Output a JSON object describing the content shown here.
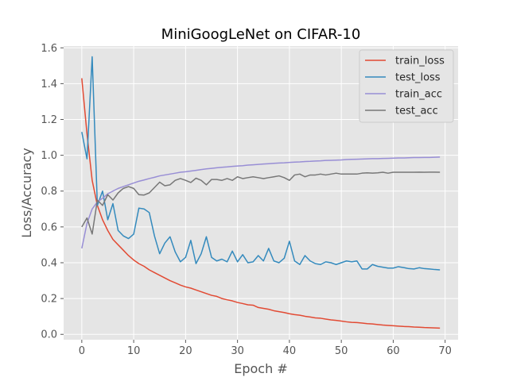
{
  "chart_data": {
    "type": "line",
    "title": "MiniGoogLeNet on CIFAR-10",
    "xlabel": "Epoch #",
    "ylabel": "Loss/Accuracy",
    "xlim": [
      -3.5,
      72.5
    ],
    "ylim": [
      -0.03,
      1.61
    ],
    "xticks": [
      "0",
      "10",
      "20",
      "30",
      "40",
      "50",
      "60",
      "70"
    ],
    "yticks": [
      "0.0",
      "0.2",
      "0.4",
      "0.6",
      "0.8",
      "1.0",
      "1.2",
      "1.4",
      "1.6"
    ],
    "grid": true,
    "legend_position": "top-right",
    "x": [
      0,
      1,
      2,
      3,
      4,
      5,
      6,
      7,
      8,
      9,
      10,
      11,
      12,
      13,
      14,
      15,
      16,
      17,
      18,
      19,
      20,
      21,
      22,
      23,
      24,
      25,
      26,
      27,
      28,
      29,
      30,
      31,
      32,
      33,
      34,
      35,
      36,
      37,
      38,
      39,
      40,
      41,
      42,
      43,
      44,
      45,
      46,
      47,
      48,
      49,
      50,
      51,
      52,
      53,
      54,
      55,
      56,
      57,
      58,
      59,
      60,
      61,
      62,
      63,
      64,
      65,
      66,
      67,
      68,
      69
    ],
    "series": [
      {
        "name": "train_loss",
        "color": "#E24A33",
        "values": [
          1.43,
          1.12,
          0.86,
          0.72,
          0.64,
          0.58,
          0.53,
          0.5,
          0.47,
          0.44,
          0.415,
          0.395,
          0.38,
          0.36,
          0.345,
          0.33,
          0.315,
          0.3,
          0.288,
          0.275,
          0.265,
          0.258,
          0.248,
          0.238,
          0.228,
          0.218,
          0.212,
          0.2,
          0.193,
          0.187,
          0.178,
          0.172,
          0.165,
          0.163,
          0.15,
          0.145,
          0.14,
          0.132,
          0.127,
          0.122,
          0.115,
          0.11,
          0.107,
          0.101,
          0.097,
          0.092,
          0.09,
          0.085,
          0.081,
          0.078,
          0.074,
          0.07,
          0.067,
          0.066,
          0.063,
          0.06,
          0.058,
          0.055,
          0.052,
          0.05,
          0.048,
          0.046,
          0.044,
          0.043,
          0.041,
          0.04,
          0.038,
          0.037,
          0.036,
          0.035
        ]
      },
      {
        "name": "test_loss",
        "color": "#348ABD",
        "values": [
          1.13,
          0.98,
          1.55,
          0.72,
          0.8,
          0.64,
          0.73,
          0.58,
          0.55,
          0.535,
          0.56,
          0.705,
          0.7,
          0.68,
          0.55,
          0.45,
          0.51,
          0.545,
          0.46,
          0.405,
          0.43,
          0.525,
          0.395,
          0.45,
          0.545,
          0.43,
          0.41,
          0.42,
          0.405,
          0.465,
          0.405,
          0.445,
          0.4,
          0.405,
          0.44,
          0.41,
          0.48,
          0.41,
          0.4,
          0.425,
          0.52,
          0.41,
          0.39,
          0.44,
          0.41,
          0.395,
          0.39,
          0.405,
          0.4,
          0.39,
          0.4,
          0.41,
          0.405,
          0.41,
          0.365,
          0.365,
          0.39,
          0.38,
          0.375,
          0.37,
          0.37,
          0.378,
          0.373,
          0.367,
          0.365,
          0.372,
          0.367,
          0.365,
          0.362,
          0.36
        ]
      },
      {
        "name": "train_acc",
        "color": "#988ED5",
        "values": [
          0.48,
          0.62,
          0.7,
          0.74,
          0.76,
          0.785,
          0.8,
          0.815,
          0.825,
          0.835,
          0.845,
          0.855,
          0.862,
          0.87,
          0.877,
          0.885,
          0.89,
          0.895,
          0.9,
          0.905,
          0.908,
          0.912,
          0.916,
          0.92,
          0.924,
          0.927,
          0.93,
          0.933,
          0.935,
          0.938,
          0.94,
          0.942,
          0.945,
          0.947,
          0.949,
          0.951,
          0.953,
          0.955,
          0.957,
          0.958,
          0.96,
          0.962,
          0.963,
          0.965,
          0.966,
          0.968,
          0.969,
          0.971,
          0.972,
          0.973,
          0.974,
          0.976,
          0.977,
          0.978,
          0.979,
          0.98,
          0.981,
          0.981,
          0.982,
          0.983,
          0.984,
          0.985,
          0.985,
          0.986,
          0.987,
          0.987,
          0.988,
          0.988,
          0.989,
          0.99
        ]
      },
      {
        "name": "test_acc",
        "color": "#777777",
        "values": [
          0.6,
          0.65,
          0.56,
          0.75,
          0.72,
          0.78,
          0.75,
          0.79,
          0.815,
          0.825,
          0.815,
          0.78,
          0.778,
          0.79,
          0.82,
          0.85,
          0.83,
          0.835,
          0.86,
          0.87,
          0.86,
          0.848,
          0.872,
          0.86,
          0.835,
          0.865,
          0.865,
          0.86,
          0.87,
          0.86,
          0.88,
          0.87,
          0.875,
          0.88,
          0.875,
          0.87,
          0.875,
          0.88,
          0.885,
          0.875,
          0.86,
          0.89,
          0.895,
          0.88,
          0.89,
          0.89,
          0.895,
          0.89,
          0.895,
          0.9,
          0.895,
          0.895,
          0.895,
          0.895,
          0.9,
          0.902,
          0.9,
          0.902,
          0.905,
          0.9,
          0.905,
          0.905,
          0.905,
          0.905,
          0.905,
          0.906,
          0.905,
          0.906,
          0.906,
          0.905
        ]
      }
    ]
  }
}
